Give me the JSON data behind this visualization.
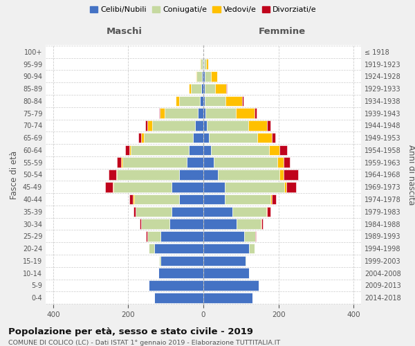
{
  "age_groups": [
    "0-4",
    "5-9",
    "10-14",
    "15-19",
    "20-24",
    "25-29",
    "30-34",
    "35-39",
    "40-44",
    "45-49",
    "50-54",
    "55-59",
    "60-64",
    "65-69",
    "70-74",
    "75-79",
    "80-84",
    "85-89",
    "90-94",
    "95-99",
    "100+"
  ],
  "birth_years": [
    "2014-2018",
    "2009-2013",
    "2004-2008",
    "1999-2003",
    "1994-1998",
    "1989-1993",
    "1984-1988",
    "1979-1983",
    "1974-1978",
    "1969-1973",
    "1964-1968",
    "1959-1963",
    "1954-1958",
    "1949-1953",
    "1944-1948",
    "1939-1943",
    "1934-1938",
    "1929-1933",
    "1924-1928",
    "1919-1923",
    "≤ 1918"
  ],
  "male": {
    "celibi": [
      130,
      145,
      120,
      115,
      130,
      115,
      90,
      85,
      65,
      85,
      65,
      45,
      38,
      28,
      22,
      14,
      10,
      6,
      4,
      2,
      0
    ],
    "coniugati": [
      0,
      0,
      0,
      2,
      15,
      35,
      75,
      95,
      120,
      155,
      165,
      170,
      155,
      130,
      115,
      90,
      55,
      28,
      14,
      5,
      0
    ],
    "vedovi": [
      0,
      0,
      0,
      0,
      0,
      0,
      0,
      1,
      2,
      2,
      2,
      4,
      5,
      8,
      12,
      12,
      8,
      5,
      3,
      2,
      0
    ],
    "divorziati": [
      0,
      0,
      0,
      0,
      0,
      2,
      5,
      5,
      10,
      20,
      20,
      12,
      10,
      8,
      5,
      2,
      0,
      0,
      0,
      0,
      0
    ]
  },
  "female": {
    "nubili": [
      130,
      148,
      122,
      112,
      122,
      108,
      88,
      78,
      58,
      58,
      38,
      28,
      20,
      14,
      10,
      6,
      4,
      3,
      3,
      2,
      0
    ],
    "coniugate": [
      0,
      0,
      0,
      2,
      15,
      30,
      65,
      90,
      120,
      158,
      165,
      170,
      155,
      130,
      110,
      80,
      55,
      28,
      18,
      5,
      0
    ],
    "vedove": [
      0,
      0,
      0,
      0,
      0,
      0,
      1,
      2,
      4,
      5,
      10,
      15,
      28,
      38,
      50,
      50,
      45,
      30,
      15,
      5,
      0
    ],
    "divorziate": [
      0,
      0,
      0,
      0,
      0,
      2,
      5,
      8,
      12,
      25,
      40,
      18,
      20,
      10,
      8,
      5,
      3,
      2,
      0,
      0,
      0
    ]
  },
  "colors": {
    "celibi": "#4472c4",
    "coniugati": "#c6d9a0",
    "vedovi": "#ffc000",
    "divorziati": "#c0031c"
  },
  "xlim": 420,
  "title": "Popolazione per età, sesso e stato civile - 2019",
  "subtitle": "COMUNE DI COLICO (LC) - Dati ISTAT 1° gennaio 2019 - Elaborazione TUTTITALIA.IT",
  "ylabel": "Fasce di età",
  "ylabel_right": "Anni di nascita",
  "xlabel_left": "Maschi",
  "xlabel_right": "Femmine",
  "legend_labels": [
    "Celibi/Nubili",
    "Coniugati/e",
    "Vedovi/e",
    "Divorziati/e"
  ],
  "bg_color": "#f0f0f0",
  "plot_bg_color": "#ffffff"
}
